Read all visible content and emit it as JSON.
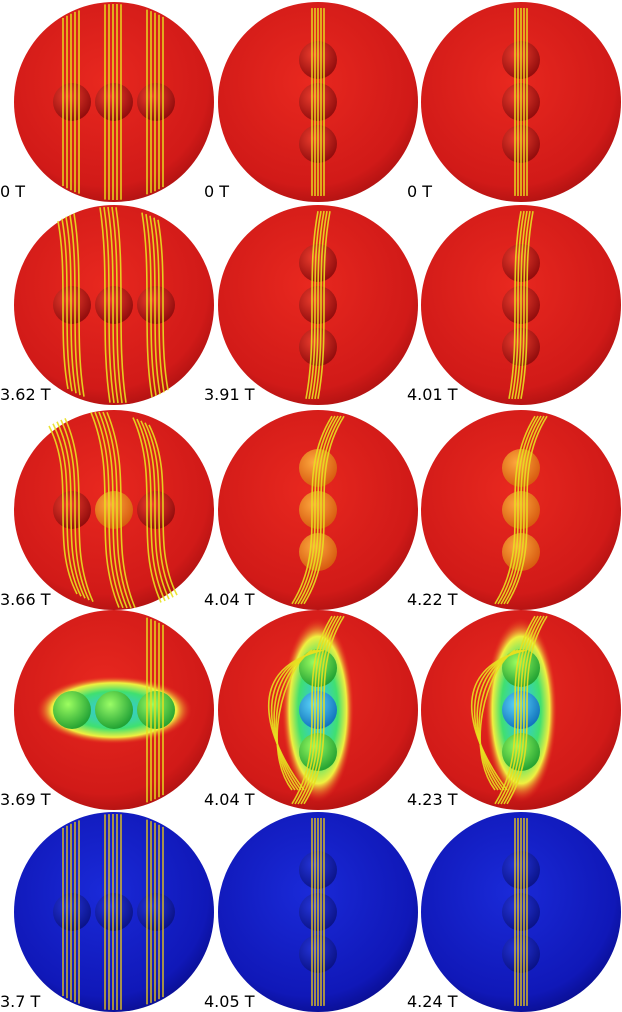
{
  "panels": [
    [
      "0 T",
      "0 T",
      "0 T"
    ],
    [
      "3.62 T",
      "3.91 T",
      "4.01 T"
    ],
    [
      "3.66 T",
      "4.04 T",
      "4.22 T"
    ],
    [
      "3.69 T",
      "4.04 T",
      "4.23 T"
    ],
    [
      "3.7 T",
      "4.05 T",
      "4.24 T"
    ]
  ]
}
